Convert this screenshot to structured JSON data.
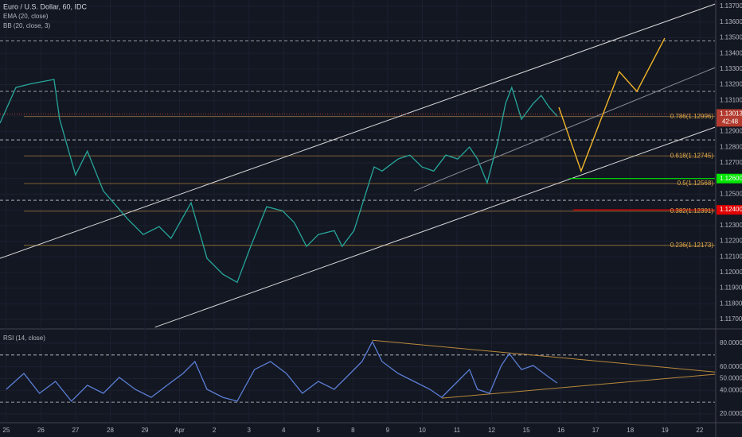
{
  "chart_data": [
    {
      "type": "line",
      "title": "Euro / U.S. Dollar, 60, IDC",
      "indicators": [
        "EMA (20, close)",
        "BB (20, close, 3)"
      ],
      "color": "#26a69a",
      "x": [
        -0.18,
        0.28,
        0.73,
        1.38,
        1.54,
        2.0,
        2.34,
        2.8,
        3.49,
        3.95,
        4.41,
        4.75,
        5.33,
        5.79,
        6.25,
        6.66,
        7.05,
        7.51,
        7.97,
        8.31,
        8.66,
        9.0,
        9.46,
        9.69,
        10.03,
        10.61,
        10.84,
        11.3,
        11.64,
        11.99,
        12.33,
        12.68,
        13.02,
        13.36,
        13.59,
        13.87,
        14.17,
        14.4,
        14.58,
        14.86,
        15.2,
        15.43,
        15.66,
        15.89
      ],
      "values": [
        1.12954,
        1.13182,
        1.13207,
        1.13233,
        1.12979,
        1.12623,
        1.12775,
        1.12521,
        1.12344,
        1.12242,
        1.12293,
        1.12217,
        1.12445,
        1.1209,
        1.11988,
        1.11937,
        1.12166,
        1.1242,
        1.12394,
        1.12318,
        1.12166,
        1.12242,
        1.12267,
        1.12166,
        1.12267,
        1.12674,
        1.12648,
        1.12725,
        1.1275,
        1.12674,
        1.12648,
        1.1275,
        1.12725,
        1.12801,
        1.12725,
        1.12572,
        1.12826,
        1.1308,
        1.13182,
        1.12979,
        1.1308,
        1.13131,
        1.13055,
        1.12999
      ],
      "xlim": [
        -0.18,
        20.44
      ],
      "xticks": [
        {
          "value": 0,
          "label": "25"
        },
        {
          "value": 1,
          "label": "26"
        },
        {
          "value": 2,
          "label": "27"
        },
        {
          "value": 3,
          "label": "28"
        },
        {
          "value": 4,
          "label": "29"
        },
        {
          "value": 5,
          "label": "Apr"
        },
        {
          "value": 6,
          "label": "2"
        },
        {
          "value": 7,
          "label": "3"
        },
        {
          "value": 8,
          "label": "4"
        },
        {
          "value": 9,
          "label": "5"
        },
        {
          "value": 10,
          "label": "8"
        },
        {
          "value": 11,
          "label": "9"
        },
        {
          "value": 12,
          "label": "10"
        },
        {
          "value": 13,
          "label": "11"
        },
        {
          "value": 14,
          "label": "12"
        },
        {
          "value": 15,
          "label": "15"
        },
        {
          "value": 16,
          "label": "16"
        },
        {
          "value": 17,
          "label": "17"
        },
        {
          "value": 18,
          "label": "18"
        },
        {
          "value": 19,
          "label": "19"
        },
        {
          "value": 20,
          "label": "22"
        }
      ],
      "ylim": [
        1.11649,
        1.13741
      ],
      "yticks": [
        {
          "value": 1.117,
          "label": "1.11700"
        },
        {
          "value": 1.118,
          "label": "1.11800"
        },
        {
          "value": 1.119,
          "label": "1.11900"
        },
        {
          "value": 1.12,
          "label": "1.12000"
        },
        {
          "value": 1.121,
          "label": "1.12100"
        },
        {
          "value": 1.122,
          "label": "1.12200"
        },
        {
          "value": 1.123,
          "label": "1.12300"
        },
        {
          "value": 1.124,
          "label": "1.12400"
        },
        {
          "value": 1.125,
          "label": "1.12500"
        },
        {
          "value": 1.126,
          "label": "1.12600"
        },
        {
          "value": 1.127,
          "label": "1.12700"
        },
        {
          "value": 1.128,
          "label": "1.12800"
        },
        {
          "value": 1.129,
          "label": "1.12900"
        },
        {
          "value": 1.13,
          "label": "1.13000"
        },
        {
          "value": 1.131,
          "label": "1.13100"
        },
        {
          "value": 1.132,
          "label": "1.13200"
        },
        {
          "value": 1.133,
          "label": "1.13300"
        },
        {
          "value": 1.134,
          "label": "1.13400"
        },
        {
          "value": 1.135,
          "label": "1.13500"
        },
        {
          "value": 1.136,
          "label": "1.13600"
        },
        {
          "value": 1.137,
          "label": "1.13700"
        }
      ],
      "levels": [
        1.1348,
        1.13157,
        1.12847,
        1.12461
      ],
      "fib": [
        {
          "label": "0.786(1.12996)",
          "value": 1.12996
        },
        {
          "label": "0.618(1.12745)",
          "value": 1.12745
        },
        {
          "label": "0.5(1.12568)",
          "value": 1.12568
        },
        {
          "label": "0.382(1.12391)",
          "value": 1.12391
        },
        {
          "label": "0.236(1.12173)",
          "value": 1.12173
        }
      ],
      "trendlines": [
        {
          "x": [
            -0.18,
            20.44
          ],
          "y": [
            1.1209,
            1.13715
          ],
          "color": "#d8d8d8"
        },
        {
          "x": [
            11.76,
            20.44
          ],
          "y": [
            1.12521,
            1.13309
          ],
          "color": "#8a8e99"
        },
        {
          "x": [
            4.29,
            20.44
          ],
          "y": [
            1.1165,
            1.12928
          ],
          "color": "#d8d8d8"
        }
      ],
      "projection": {
        "x": [
          15.94,
          16.58,
          17.68,
          18.19,
          18.99
        ],
        "y": [
          1.13055,
          1.12648,
          1.13283,
          1.13157,
          1.13497
        ],
        "color": "#f0b429"
      },
      "price_tags": [
        {
          "value": 1.126,
          "label": "1.12600",
          "color": "#00e600",
          "x_from": 16.23
        },
        {
          "value": 1.124,
          "label": "1.12400",
          "color": "#e00000",
          "x_from": 16.35
        }
      ],
      "current": {
        "value": 1.13013,
        "label": "1.13013",
        "countdown": "42:48",
        "color": "#b23a2e"
      }
    },
    {
      "type": "line",
      "title": "RSI (14, close)",
      "color": "#5b7fd6",
      "x": [
        0,
        0.51,
        0.96,
        1.42,
        1.88,
        2.34,
        2.8,
        3.26,
        3.72,
        4.18,
        4.64,
        5.1,
        5.44,
        5.79,
        6.25,
        6.66,
        7.16,
        7.62,
        8.08,
        8.54,
        9.0,
        9.46,
        9.92,
        10.26,
        10.56,
        10.84,
        11.3,
        11.76,
        12.22,
        12.56,
        13.02,
        13.36,
        13.59,
        13.94,
        14.28,
        14.51,
        14.86,
        15.2,
        15.66,
        15.89
      ],
      "values": [
        40.9,
        54.4,
        37.5,
        47.6,
        30.8,
        44.3,
        37.5,
        51.0,
        40.9,
        34.1,
        44.3,
        54.4,
        64.5,
        40.9,
        34.1,
        30.8,
        57.7,
        64.5,
        54.4,
        37.5,
        47.6,
        40.9,
        54.4,
        64.5,
        81.3,
        64.5,
        54.4,
        47.6,
        40.9,
        34.1,
        47.6,
        57.7,
        40.9,
        37.5,
        61.1,
        71.2,
        57.7,
        61.1,
        51.0,
        46.3
      ],
      "ylim": [
        13.9,
        88.1
      ],
      "yticks": [
        {
          "value": 80,
          "label": "80.0000"
        },
        {
          "value": 60,
          "label": "60.0000"
        },
        {
          "value": 50,
          "label": "50.0000"
        },
        {
          "value": 40,
          "label": "40.0000"
        },
        {
          "value": 20,
          "label": "20.0000"
        }
      ],
      "levels": [
        70,
        30
      ],
      "trendlines": [
        {
          "x": [
            10.56,
            20.44
          ],
          "y": [
            82.6,
            55.6
          ],
          "color": "#b8893a"
        },
        {
          "x": [
            12.56,
            20.44
          ],
          "y": [
            33.4,
            53.6
          ],
          "color": "#b8893a"
        }
      ]
    }
  ]
}
